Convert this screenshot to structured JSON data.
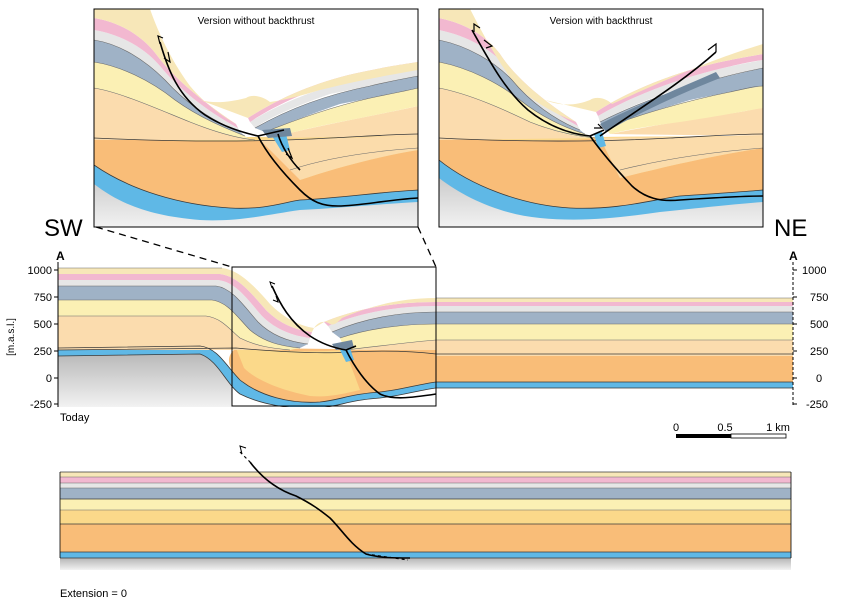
{
  "panels": {
    "inset_left_title": "Version without backthrust",
    "inset_right_title": "Version with backthrust"
  },
  "section": {
    "sw_label": "SW",
    "ne_label": "NE",
    "left_end_label": "A",
    "right_end_label": "A",
    "axis_unit": "[m.a.s.l.]",
    "y_ticks_left": [
      "1000",
      "750",
      "500",
      "250",
      "0",
      "-250"
    ],
    "y_ticks_right": [
      "1000",
      "750",
      "500",
      "250",
      "0",
      "-250"
    ],
    "stage_label": "Today"
  },
  "scale_bar": {
    "labels": [
      "0",
      "0.5",
      "1 km"
    ]
  },
  "restored": {
    "caption": "Extension = 0"
  },
  "colors": {
    "cream": "#f7e7b8",
    "pink": "#f2b8d0",
    "light_gray": "#e6e6e6",
    "steel_blue": "#9fb2c6",
    "pale_yellow": "#fbf0b4",
    "pale_orange": "#fbdcae",
    "orange": "#f9bd78",
    "yellow": "#fbd98a",
    "blue": "#5fb8e6",
    "basement_gray": "#c4c4c4"
  }
}
